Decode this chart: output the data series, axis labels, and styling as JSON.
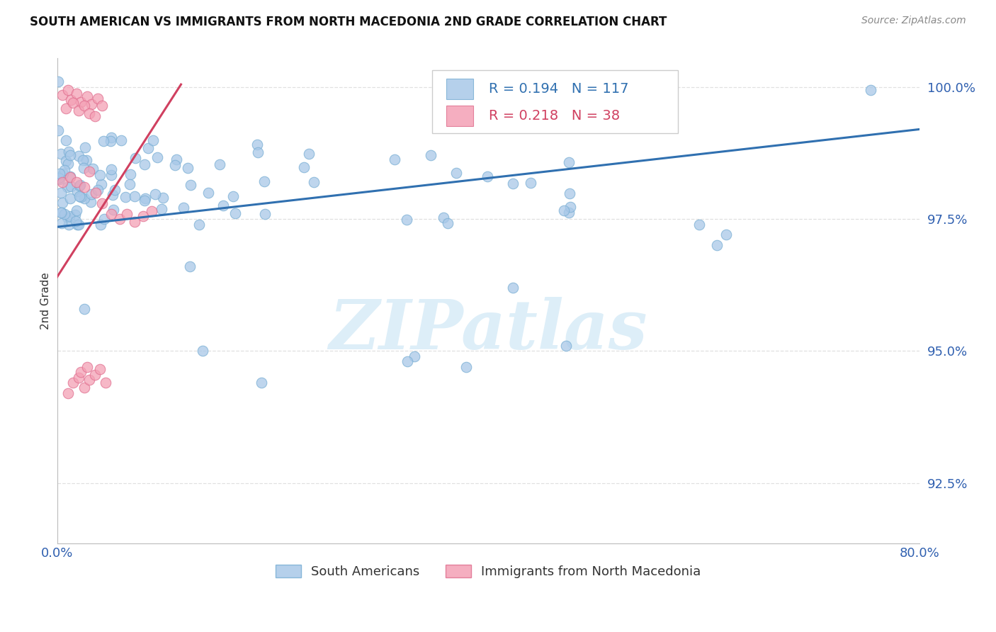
{
  "title": "SOUTH AMERICAN VS IMMIGRANTS FROM NORTH MACEDONIA 2ND GRADE CORRELATION CHART",
  "source": "Source: ZipAtlas.com",
  "ylabel": "2nd Grade",
  "x_min": 0.0,
  "x_max": 0.8,
  "y_min": 0.9135,
  "y_max": 1.0055,
  "y_ticks": [
    0.925,
    0.95,
    0.975,
    1.0
  ],
  "y_tick_labels": [
    "92.5%",
    "95.0%",
    "97.5%",
    "100.0%"
  ],
  "blue_color": "#a8c8e8",
  "blue_edge_color": "#7aafd4",
  "pink_color": "#f4a0b5",
  "pink_edge_color": "#e07090",
  "blue_line_color": "#3070b0",
  "pink_line_color": "#d04060",
  "legend_blue_r": "R = 0.194",
  "legend_blue_n": "N = 117",
  "legend_pink_r": "R = 0.218",
  "legend_pink_n": "N = 38",
  "watermark": "ZIPatlas",
  "watermark_color": "#ddeef8",
  "title_color": "#111111",
  "axis_label_color": "#555555",
  "tick_color": "#3060b0",
  "grid_color": "#dddddd",
  "blue_line_x0": 0.0,
  "blue_line_x1": 0.8,
  "blue_line_y0": 0.9735,
  "blue_line_y1": 0.992,
  "pink_line_x0": 0.0,
  "pink_line_x1": 0.115,
  "pink_line_y0": 0.964,
  "pink_line_y1": 1.0005
}
